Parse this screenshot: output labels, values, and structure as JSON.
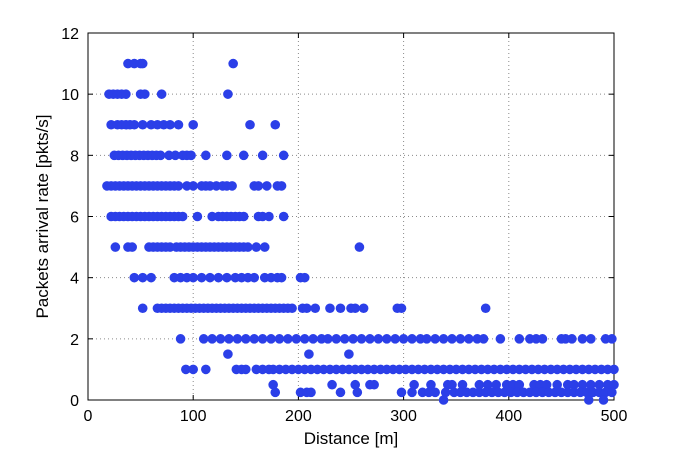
{
  "chart_data": {
    "type": "scatter",
    "title": "",
    "xlabel": "Distance [m]",
    "ylabel": "Packets arrival rate [pkts/s]",
    "xlim": [
      0,
      500
    ],
    "ylim": [
      0,
      12
    ],
    "xticks": [
      0,
      100,
      200,
      300,
      400,
      500
    ],
    "yticks": [
      0,
      2,
      4,
      6,
      8,
      10,
      12
    ],
    "xtick_labels": [
      "0",
      "100",
      "200",
      "300",
      "400",
      "500"
    ],
    "ytick_labels": [
      "0",
      "2",
      "4",
      "6",
      "8",
      "10",
      "12"
    ],
    "grid": true,
    "legend": "none",
    "marker_color": "#2b3fe8",
    "series": [
      {
        "rows": [
          {
            "y": 11,
            "x": [
              38,
              44,
              50,
              52,
              138
            ]
          },
          {
            "y": 10,
            "x": [
              20,
              24,
              28,
              32,
              36,
              50,
              54,
              70,
              133
            ]
          },
          {
            "y": 9,
            "x": [
              22,
              28,
              32,
              36,
              40,
              44,
              52,
              60,
              66,
              72,
              78,
              86,
              100,
              154,
              178
            ]
          },
          {
            "y": 8,
            "x": [
              25,
              29,
              33,
              37,
              41,
              45,
              49,
              53,
              57,
              61,
              65,
              69,
              77,
              83,
              90,
              94,
              98,
              112,
              132,
              148,
              166,
              186
            ]
          },
          {
            "y": 7,
            "x": [
              18,
              22,
              26,
              30,
              34,
              38,
              42,
              46,
              50,
              54,
              58,
              62,
              66,
              70,
              74,
              78,
              82,
              86,
              94,
              100,
              108,
              112,
              116,
              122,
              128,
              132,
              137,
              158,
              162,
              170,
              180,
              184
            ]
          },
          {
            "y": 6,
            "x": [
              22,
              26,
              30,
              34,
              38,
              42,
              46,
              50,
              54,
              58,
              62,
              66,
              70,
              74,
              78,
              82,
              86,
              90,
              104,
              118,
              124,
              128,
              132,
              136,
              140,
              144,
              148,
              162,
              166,
              172,
              186
            ]
          },
          {
            "y": 5,
            "x": [
              26,
              38,
              42,
              58,
              62,
              66,
              70,
              74,
              78,
              84,
              88,
              92,
              96,
              100,
              104,
              108,
              112,
              116,
              120,
              124,
              128,
              132,
              136,
              140,
              144,
              148,
              152,
              160,
              168,
              258
            ]
          },
          {
            "y": 4,
            "x": [
              44,
              52,
              60,
              82,
              88,
              94,
              100,
              108,
              116,
              124,
              132,
              140,
              146,
              152,
              158,
              168,
              174,
              180,
              184,
              202,
              206
            ]
          },
          {
            "y": 3,
            "x": [
              52,
              66,
              70,
              74,
              78,
              82,
              86,
              90,
              94,
              98,
              102,
              106,
              110,
              114,
              118,
              122,
              126,
              130,
              134,
              138,
              142,
              146,
              150,
              154,
              158,
              162,
              166,
              170,
              174,
              178,
              182,
              186,
              190,
              194,
              204,
              208,
              216,
              230,
              240,
              250,
              254,
              262,
              294,
              298,
              378
            ]
          },
          {
            "y": 2,
            "x": [
              88,
              110,
              118,
              126,
              134,
              142,
              150,
              158,
              166,
              174,
              182,
              190,
              198,
              206,
              214,
              222,
              228,
              236,
              244,
              252,
              260,
              268,
              276,
              284,
              292,
              300,
              308,
              316,
              322,
              330,
              338,
              346,
              354,
              362,
              370,
              376,
              392,
              410,
              420,
              426,
              432,
              450,
              454,
              460,
              470,
              478,
              492,
              498
            ]
          },
          {
            "y": 1.5,
            "x": [
              133,
              210,
              248
            ]
          },
          {
            "y": 1,
            "x": [
              93,
              100,
              112,
              141,
              146,
              150,
              160,
              166,
              172,
              176,
              182,
              188,
              194,
              200,
              206,
              212,
              218,
              224,
              230,
              236,
              242,
              248,
              254,
              260,
              266,
              272,
              278,
              284,
              290,
              296,
              302,
              308,
              314,
              320,
              326,
              332,
              338,
              344,
              350,
              356,
              362,
              368,
              374,
              380,
              386,
              392,
              398,
              404,
              410,
              416,
              422,
              428,
              434,
              440,
              446,
              452,
              458,
              464,
              470,
              476,
              482,
              488,
              494,
              500
            ]
          },
          {
            "y": 0.5,
            "x": [
              176,
              232,
              254,
              268,
              272,
              310,
              326,
              342,
              346,
              356,
              372,
              380,
              388,
              398,
              404,
              410,
              424,
              430,
              436,
              446,
              456,
              462,
              470,
              478,
              486,
              494,
              500
            ]
          },
          {
            "y": 0.25,
            "x": [
              178,
              202,
              208,
              212,
              240,
              256,
              298,
              308,
              318,
              324,
              330,
              340,
              348,
              354,
              360,
              366,
              372,
              378,
              384,
              390,
              396,
              402,
              408,
              414,
              420,
              426,
              432,
              438,
              444,
              450,
              456,
              462,
              468,
              474,
              480,
              486,
              492,
              498
            ]
          },
          {
            "y": 0,
            "x": [
              338,
              476,
              490
            ]
          }
        ]
      }
    ]
  }
}
